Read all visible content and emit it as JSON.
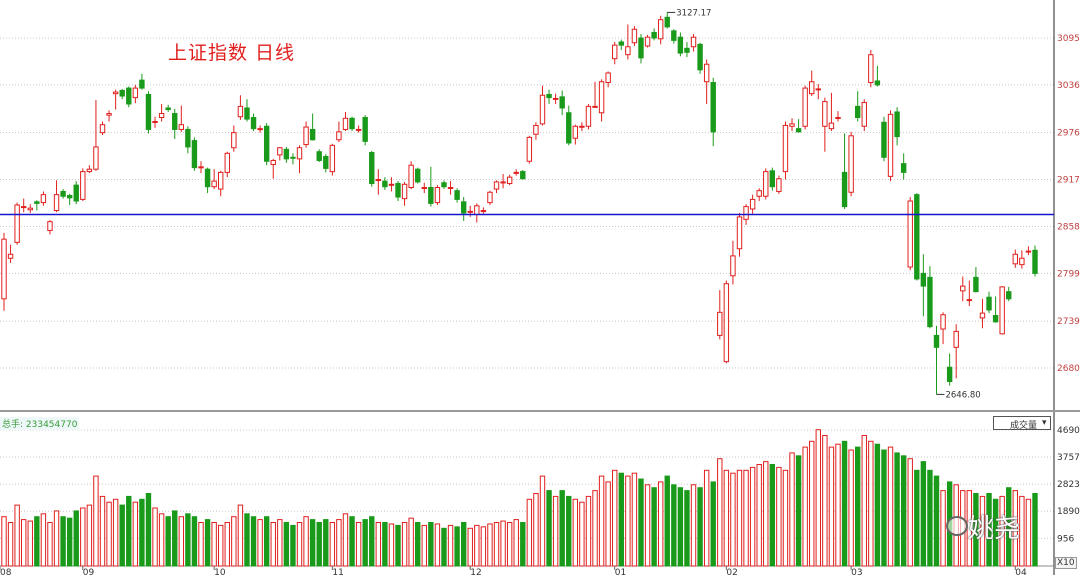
{
  "title": "上证指数  日线",
  "volume_panel": {
    "label": "总手: 233454770",
    "selector": "成交量",
    "selector_icon": "caret-down-icon"
  },
  "watermark": "姚尧",
  "watermark_icon": "wechat-icon",
  "zoom_badge": "X10",
  "colors": {
    "up": "#e0201e",
    "down": "#1a9a1a",
    "support_line": "#1515d0",
    "axis_text": "#c04040"
  },
  "chart_data": {
    "type": "candlestick",
    "price_ticks": [
      3095,
      3036,
      2976,
      2917,
      2858,
      2799,
      2739,
      2680
    ],
    "volume_ticks": [
      4690,
      3757,
      2823,
      1890,
      956
    ],
    "month_labels": [
      {
        "label": "08",
        "index": 0
      },
      {
        "label": "09",
        "index": 12
      },
      {
        "label": "10",
        "index": 32
      },
      {
        "label": "11",
        "index": 50
      },
      {
        "label": "12",
        "index": 71
      },
      {
        "label": "01",
        "index": 93
      },
      {
        "label": "02",
        "index": 110
      },
      {
        "label": "03",
        "index": 129
      },
      {
        "label": "04",
        "index": 154
      }
    ],
    "support_level": 2873,
    "annotations": [
      {
        "text": "3127.17",
        "index": 101,
        "price": 3127.17
      },
      {
        "text": "2646.80",
        "index": 142,
        "price": 2646.8
      }
    ],
    "ohlc": [
      [
        2767,
        2850,
        2752,
        2842
      ],
      [
        2818,
        2835,
        2812,
        2823
      ],
      [
        2838,
        2888,
        2835,
        2885
      ],
      [
        2883,
        2893,
        2876,
        2883
      ],
      [
        2879,
        2886,
        2875,
        2881
      ],
      [
        2889,
        2891,
        2878,
        2887
      ],
      [
        2888,
        2902,
        2884,
        2898
      ],
      [
        2853,
        2866,
        2848,
        2864
      ],
      [
        2878,
        2916,
        2876,
        2898
      ],
      [
        2902,
        2905,
        2893,
        2896
      ],
      [
        2897,
        2899,
        2885,
        2894
      ],
      [
        2910,
        2915,
        2886,
        2890
      ],
      [
        2892,
        2931,
        2890,
        2927
      ],
      [
        2927,
        2935,
        2925,
        2930
      ],
      [
        2930,
        3017,
        2928,
        2958
      ],
      [
        2976,
        2990,
        2973,
        2986
      ],
      [
        2998,
        3004,
        2990,
        3000
      ],
      [
        3025,
        3030,
        3005,
        3027
      ],
      [
        3029,
        3031,
        3018,
        3022
      ],
      [
        3032,
        3034,
        3008,
        3012
      ],
      [
        3020,
        3036,
        3013,
        3032
      ],
      [
        3042,
        3050,
        3030,
        3032
      ],
      [
        3024,
        3028,
        2975,
        2980
      ],
      [
        2990,
        2996,
        2982,
        2990
      ],
      [
        2995,
        3012,
        2990,
        3000
      ],
      [
        3007,
        3011,
        3002,
        3005
      ],
      [
        3000,
        3006,
        2968,
        2980
      ],
      [
        2980,
        3010,
        2977,
        2986
      ],
      [
        2980,
        2984,
        2950,
        2958
      ],
      [
        2966,
        2970,
        2928,
        2932
      ],
      [
        2932,
        2940,
        2925,
        2933
      ],
      [
        2930,
        2932,
        2900,
        2908
      ],
      [
        2908,
        2930,
        2905,
        2915
      ],
      [
        2905,
        2928,
        2896,
        2926
      ],
      [
        2926,
        2952,
        2920,
        2950
      ],
      [
        2957,
        2985,
        2952,
        2976
      ],
      [
        2996,
        3023,
        2992,
        3009
      ],
      [
        3007,
        3018,
        2990,
        2993
      ],
      [
        2995,
        3000,
        2978,
        2981
      ],
      [
        2981,
        2985,
        2976,
        2981
      ],
      [
        2984,
        2988,
        2935,
        2940
      ],
      [
        2936,
        2943,
        2918,
        2941
      ],
      [
        2948,
        2958,
        2941,
        2957
      ],
      [
        2955,
        2958,
        2938,
        2943
      ],
      [
        2945,
        2950,
        2936,
        2944
      ],
      [
        2943,
        2960,
        2925,
        2957
      ],
      [
        2961,
        2990,
        2957,
        2983
      ],
      [
        2980,
        3000,
        2966,
        2967
      ],
      [
        2952,
        2955,
        2939,
        2941
      ],
      [
        2946,
        2949,
        2926,
        2931
      ],
      [
        2927,
        2962,
        2922,
        2960
      ],
      [
        2967,
        2990,
        2964,
        2977
      ],
      [
        2980,
        3002,
        2978,
        2994
      ],
      [
        2994,
        2996,
        2978,
        2981
      ],
      [
        2980,
        2985,
        2976,
        2980
      ],
      [
        2995,
        2998,
        2960,
        2965
      ],
      [
        2951,
        2953,
        2908,
        2912
      ],
      [
        2917,
        2930,
        2898,
        2917
      ],
      [
        2915,
        2920,
        2904,
        2908
      ],
      [
        2911,
        2920,
        2902,
        2911
      ],
      [
        2912,
        2915,
        2890,
        2895
      ],
      [
        2893,
        2914,
        2884,
        2911
      ],
      [
        2907,
        2940,
        2905,
        2935
      ],
      [
        2930,
        2932,
        2912,
        2914
      ],
      [
        2907,
        2913,
        2900,
        2907
      ],
      [
        2907,
        2933,
        2883,
        2887
      ],
      [
        2888,
        2910,
        2885,
        2907
      ],
      [
        2913,
        2916,
        2905,
        2908
      ],
      [
        2907,
        2915,
        2898,
        2907
      ],
      [
        2903,
        2906,
        2888,
        2892
      ],
      [
        2889,
        2895,
        2865,
        2875
      ],
      [
        2877,
        2884,
        2870,
        2877
      ],
      [
        2873,
        2887,
        2863,
        2884
      ],
      [
        2878,
        2882,
        2874,
        2878
      ],
      [
        2888,
        2903,
        2885,
        2901
      ],
      [
        2905,
        2916,
        2900,
        2914
      ],
      [
        2914,
        2924,
        2906,
        2914
      ],
      [
        2912,
        2923,
        2910,
        2920
      ],
      [
        2926,
        2930,
        2922,
        2926
      ],
      [
        2927,
        2929,
        2917,
        2918
      ],
      [
        2940,
        2972,
        2937,
        2970
      ],
      [
        2974,
        2989,
        2967,
        2985
      ],
      [
        2987,
        3035,
        2985,
        3023
      ],
      [
        3024,
        3030,
        3012,
        3020
      ],
      [
        3019,
        3025,
        3012,
        3019
      ],
      [
        3021,
        3029,
        2998,
        3007
      ],
      [
        3001,
        3010,
        2960,
        2963
      ],
      [
        2969,
        2986,
        2961,
        2984
      ],
      [
        2984,
        2989,
        2978,
        2984
      ],
      [
        2984,
        3012,
        2980,
        3009
      ],
      [
        3009,
        3040,
        3008,
        3009
      ],
      [
        3001,
        3043,
        2990,
        3040
      ],
      [
        3039,
        3053,
        3033,
        3051
      ],
      [
        3069,
        3090,
        3062,
        3086
      ],
      [
        3090,
        3093,
        3080,
        3086
      ],
      [
        3074,
        3112,
        3068,
        3084
      ],
      [
        3089,
        3110,
        3085,
        3106
      ],
      [
        3095,
        3100,
        3063,
        3070
      ],
      [
        3085,
        3099,
        3083,
        3096
      ],
      [
        3102,
        3107,
        3092,
        3095
      ],
      [
        3094,
        3123,
        3087,
        3118
      ],
      [
        3121,
        3127.17,
        3107,
        3109
      ],
      [
        3104,
        3106,
        3088,
        3092
      ],
      [
        3096,
        3102,
        3072,
        3076
      ],
      [
        3082,
        3090,
        3071,
        3077
      ],
      [
        3084,
        3100,
        3078,
        3096
      ],
      [
        3087,
        3089,
        3050,
        3055
      ],
      [
        3040,
        3068,
        3012,
        3062
      ],
      [
        3039,
        3045,
        2959,
        2977
      ],
      [
        2721,
        2778,
        2716,
        2750
      ],
      [
        2688,
        2790,
        2686,
        2786
      ],
      [
        2796,
        2840,
        2785,
        2821
      ],
      [
        2830,
        2875,
        2820,
        2870
      ],
      [
        2867,
        2886,
        2860,
        2883
      ],
      [
        2880,
        2898,
        2874,
        2892
      ],
      [
        2896,
        2906,
        2890,
        2903
      ],
      [
        2896,
        2931,
        2892,
        2927
      ],
      [
        2928,
        2932,
        2903,
        2908
      ],
      [
        2902,
        2922,
        2899,
        2918
      ],
      [
        2927,
        2990,
        2917,
        2985
      ],
      [
        2984,
        2994,
        2978,
        2987
      ],
      [
        2981,
        2993,
        2976,
        2977
      ],
      [
        2984,
        3035,
        2980,
        3032
      ],
      [
        3025,
        3054,
        3022,
        3040
      ],
      [
        3031,
        3037,
        3018,
        3031
      ],
      [
        2984,
        3020,
        2952,
        3015
      ],
      [
        2981,
        3026,
        2978,
        2988
      ],
      [
        2995,
        3003,
        2990,
        2995
      ],
      [
        2926,
        2975,
        2880,
        2883
      ],
      [
        2901,
        2977,
        2896,
        2972
      ],
      [
        3009,
        3028,
        2990,
        2995
      ],
      [
        2984,
        3018,
        2978,
        3014
      ],
      [
        3039,
        3080,
        3033,
        3074
      ],
      [
        3041,
        3060,
        3034,
        3036
      ],
      [
        2989,
        2996,
        2940,
        2945
      ],
      [
        2921,
        3004,
        2915,
        2999
      ],
      [
        3002,
        3008,
        2960,
        2971
      ],
      [
        2937,
        2950,
        2917,
        2926
      ],
      [
        2807,
        2895,
        2803,
        2890
      ],
      [
        2898,
        2900,
        2790,
        2792
      ],
      [
        2799,
        2823,
        2745,
        2783
      ],
      [
        2794,
        2808,
        2730,
        2732
      ],
      [
        2721,
        2733,
        2646.8,
        2706
      ],
      [
        2729,
        2750,
        2710,
        2747
      ],
      [
        2681,
        2698,
        2658,
        2663
      ],
      [
        2706,
        2735,
        2667,
        2726
      ],
      [
        2777,
        2795,
        2764,
        2783
      ],
      [
        2766,
        2790,
        2758,
        2766
      ],
      [
        2794,
        2807,
        2775,
        2776
      ],
      [
        2743,
        2767,
        2730,
        2749
      ],
      [
        2769,
        2776,
        2749,
        2753
      ],
      [
        2746,
        2770,
        2737,
        2738
      ],
      [
        2723,
        2783,
        2722,
        2782
      ],
      [
        2776,
        2782,
        2764,
        2767
      ],
      [
        2811,
        2829,
        2806,
        2823
      ],
      [
        2810,
        2828,
        2805,
        2818
      ],
      [
        2827,
        2833,
        2822,
        2827
      ],
      [
        2828,
        2834,
        2795,
        2799
      ]
    ],
    "volume": [
      1700,
      1500,
      2100,
      1600,
      1550,
      1700,
      1800,
      1500,
      1900,
      1700,
      1650,
      1900,
      2000,
      2100,
      3100,
      2400,
      2200,
      2300,
      2100,
      2400,
      2200,
      2300,
      2500,
      2000,
      1800,
      1700,
      1900,
      1700,
      1800,
      1700,
      1500,
      1600,
      1500,
      1400,
      1500,
      1700,
      2100,
      1800,
      1700,
      1600,
      1700,
      1500,
      1600,
      1500,
      1400,
      1500,
      1700,
      1600,
      1500,
      1600,
      1500,
      1600,
      1800,
      1700,
      1500,
      1600,
      1700,
      1500,
      1500,
      1450,
      1400,
      1500,
      1650,
      1500,
      1400,
      1500,
      1450,
      1300,
      1400,
      1350,
      1500,
      1300,
      1400,
      1350,
      1450,
      1500,
      1550,
      1500,
      1600,
      1500,
      2300,
      2500,
      3100,
      2600,
      2400,
      2600,
      2400,
      2300,
      2200,
      2400,
      2600,
      3100,
      2900,
      3300,
      3200,
      3100,
      3200,
      3000,
      2800,
      2700,
      2900,
      3100,
      2800,
      2700,
      2600,
      2800,
      2700,
      3300,
      2900,
      3700,
      3300,
      3200,
      3300,
      3300,
      3400,
      3500,
      3600,
      3500,
      3400,
      3300,
      3900,
      3800,
      4100,
      4300,
      4700,
      4500,
      4100,
      4200,
      4300,
      4000,
      4100,
      4500,
      4300,
      4200,
      4000,
      4100,
      3900,
      3800,
      3700,
      3300,
      3600,
      3300,
      3100,
      2600,
      2900,
      2800,
      2600,
      2600,
      2500,
      2400,
      2500,
      2300,
      2400,
      2700,
      2600,
      2400,
      2300,
      2500
    ]
  }
}
